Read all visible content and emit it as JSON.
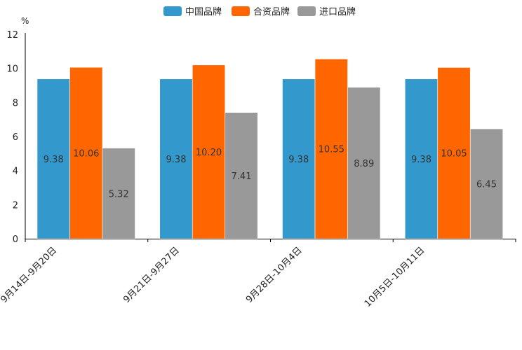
{
  "chart_data": {
    "type": "bar",
    "title": "",
    "xlabel": "",
    "ylabel": "%",
    "ylim": [
      0,
      12
    ],
    "yticks": [
      0,
      2,
      4,
      6,
      8,
      10,
      12
    ],
    "grid": false,
    "legend_position": "top-center",
    "categories": [
      "9月14日-9月20日",
      "9月21日-9月27日",
      "9月28日-10月4日",
      "10月5日-10月11日"
    ],
    "series": [
      {
        "name": "中国品牌",
        "color": "#3399cc",
        "values": [
          9.38,
          9.38,
          9.38,
          9.38
        ],
        "labels": [
          "9.38",
          "9.38",
          "9.38",
          "9.38"
        ]
      },
      {
        "name": "合资品牌",
        "color": "#ff6600",
        "values": [
          10.06,
          10.2,
          10.55,
          10.05
        ],
        "labels": [
          "10.06",
          "10.20",
          "10.55",
          "10.05"
        ]
      },
      {
        "name": "进口品牌",
        "color": "#999999",
        "values": [
          5.32,
          7.41,
          8.89,
          6.45
        ],
        "labels": [
          "5.32",
          "7.41",
          "8.89",
          "6.45"
        ]
      }
    ]
  }
}
